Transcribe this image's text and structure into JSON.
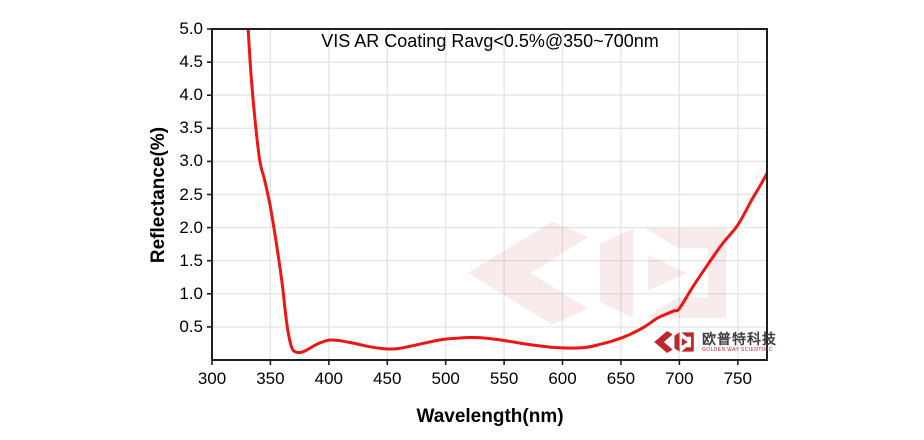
{
  "chart_data": {
    "type": "line",
    "title": "VIS AR Coating Ravg<0.5%@350~700nm",
    "xlabel": "Wavelength(nm)",
    "ylabel": "Reflectance(%)",
    "xlim": [
      300,
      775
    ],
    "ylim": [
      0,
      5
    ],
    "xticks": [
      300,
      350,
      400,
      450,
      500,
      550,
      600,
      650,
      700,
      750
    ],
    "yticks": [
      0.5,
      1.0,
      1.5,
      2.0,
      2.5,
      3.0,
      3.5,
      4.0,
      4.5,
      5.0
    ],
    "grid": true,
    "legend_position": "none",
    "series": [
      {
        "name": "reflectance",
        "points": [
          [
            329,
            5.6
          ],
          [
            333,
            4.4
          ],
          [
            337,
            3.6
          ],
          [
            341,
            3.0
          ],
          [
            345,
            2.72
          ],
          [
            350,
            2.31
          ],
          [
            355,
            1.77
          ],
          [
            360,
            1.16
          ],
          [
            364,
            0.55
          ],
          [
            368,
            0.2
          ],
          [
            372,
            0.12
          ],
          [
            377,
            0.12
          ],
          [
            383,
            0.17
          ],
          [
            390,
            0.24
          ],
          [
            400,
            0.3
          ],
          [
            410,
            0.29
          ],
          [
            422,
            0.25
          ],
          [
            435,
            0.2
          ],
          [
            447,
            0.17
          ],
          [
            458,
            0.17
          ],
          [
            470,
            0.21
          ],
          [
            483,
            0.26
          ],
          [
            497,
            0.31
          ],
          [
            510,
            0.33
          ],
          [
            522,
            0.34
          ],
          [
            535,
            0.33
          ],
          [
            548,
            0.3
          ],
          [
            562,
            0.26
          ],
          [
            577,
            0.22
          ],
          [
            592,
            0.19
          ],
          [
            607,
            0.18
          ],
          [
            620,
            0.19
          ],
          [
            633,
            0.24
          ],
          [
            645,
            0.3
          ],
          [
            658,
            0.39
          ],
          [
            670,
            0.5
          ],
          [
            682,
            0.64
          ],
          [
            695,
            0.74
          ],
          [
            700,
            0.78
          ],
          [
            712,
            1.12
          ],
          [
            725,
            1.46
          ],
          [
            737,
            1.76
          ],
          [
            750,
            2.04
          ],
          [
            762,
            2.42
          ],
          [
            770,
            2.66
          ],
          [
            775,
            2.82
          ]
        ]
      }
    ]
  },
  "colors": {
    "curve": "#ee1515",
    "grid": "#e6e6e6",
    "axis": "#1f1f1f",
    "background": "#ffffff",
    "logo_red": "#c0272d",
    "logo_text": "#3f3f3f",
    "watermark_opacity": "0.09"
  },
  "logo": {
    "cn": "欧普特科技",
    "en": "GOLDEN WAY SCIENTIFIC"
  }
}
